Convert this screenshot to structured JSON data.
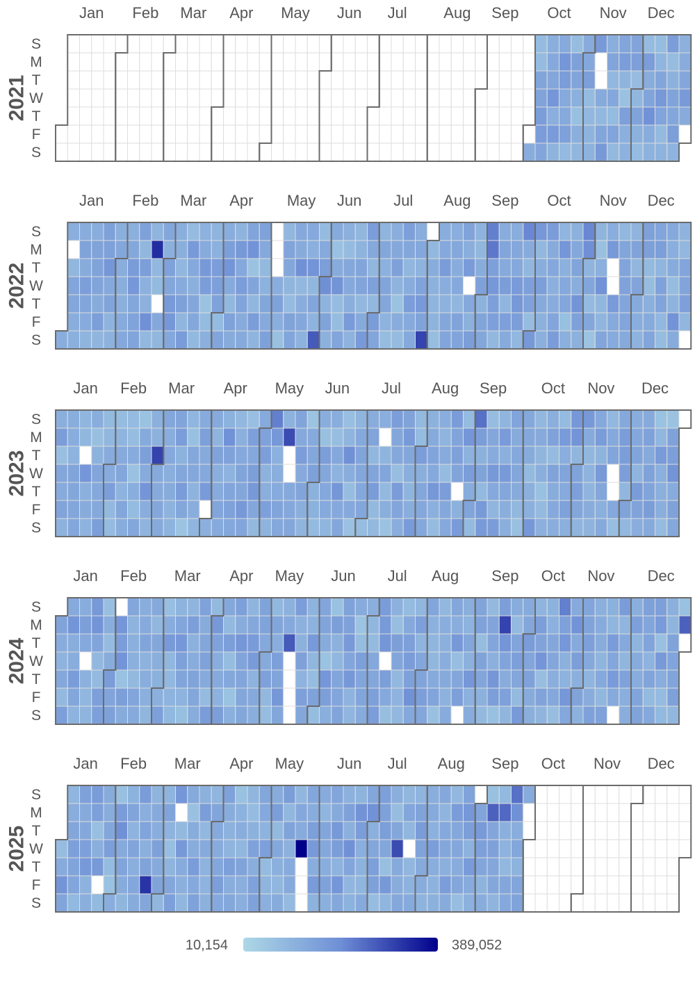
{
  "chart_data": {
    "type": "heatmap",
    "subtype": "calendar",
    "years": [
      2021,
      2022,
      2023,
      2024,
      2025
    ],
    "data_start": "2021-10-02",
    "data_end": "2025-09-28",
    "month_labels": [
      "Jan",
      "Feb",
      "Mar",
      "Apr",
      "May",
      "Jun",
      "Jul",
      "Aug",
      "Sep",
      "Oct",
      "Nov",
      "Dec"
    ],
    "weekday_labels": [
      "S",
      "M",
      "T",
      "W",
      "T",
      "F",
      "S"
    ],
    "color_scale": {
      "min": 10154,
      "max": 389052,
      "min_label": "10,154",
      "max_label": "389,052",
      "stops": [
        "#add8e6",
        "#6f8fd6",
        "#00008b"
      ]
    },
    "missing_days": [
      "2021-11-08",
      "2021-11-09",
      "2021-12-31",
      "2022-01-03",
      "2022-02-24",
      "2022-05-01",
      "2022-05-02",
      "2022-05-03",
      "2022-07-31",
      "2022-08-24",
      "2022-11-15",
      "2022-11-16",
      "2022-12-31",
      "2023-01-17",
      "2023-03-31",
      "2023-05-16",
      "2023-05-17",
      "2023-07-10",
      "2023-08-24",
      "2023-11-22",
      "2023-11-23",
      "2023-12-31",
      "2024-01-17",
      "2024-02-04",
      "2024-05-15",
      "2024-05-16",
      "2024-05-17",
      "2024-05-18",
      "2024-07-10",
      "2024-08-24",
      "2024-11-23",
      "2024-12-31",
      "2025-01-24",
      "2025-03-10",
      "2025-05-22",
      "2025-05-23",
      "2025-05-24",
      "2025-07-23",
      "2025-08-31"
    ],
    "notable_days": [
      {
        "date": "2022-02-21",
        "value": 330000
      },
      {
        "date": "2022-05-28",
        "value": 270000
      },
      {
        "date": "2022-07-30",
        "value": 300000
      },
      {
        "date": "2022-09-04",
        "value": 220000
      },
      {
        "date": "2022-09-05",
        "value": 230000
      },
      {
        "date": "2022-09-25",
        "value": 210000
      },
      {
        "date": "2022-10-30",
        "value": 210000
      },
      {
        "date": "2023-02-28",
        "value": 300000
      },
      {
        "date": "2023-05-15",
        "value": 290000
      },
      {
        "date": "2023-09-03",
        "value": 240000
      },
      {
        "date": "2023-05-07",
        "value": 220000
      },
      {
        "date": "2024-05-14",
        "value": 270000
      },
      {
        "date": "2024-09-16",
        "value": 300000
      },
      {
        "date": "2024-12-30",
        "value": 260000
      },
      {
        "date": "2024-10-20",
        "value": 220000
      },
      {
        "date": "2025-02-21",
        "value": 320000
      },
      {
        "date": "2025-05-21",
        "value": 389052
      },
      {
        "date": "2025-07-16",
        "value": 290000
      },
      {
        "date": "2025-09-08",
        "value": 260000
      },
      {
        "date": "2025-09-15",
        "value": 250000
      },
      {
        "date": "2025-09-21",
        "value": 240000
      }
    ],
    "typical_range": [
      60000,
      200000
    ],
    "xlabel": "",
    "ylabel": ""
  }
}
